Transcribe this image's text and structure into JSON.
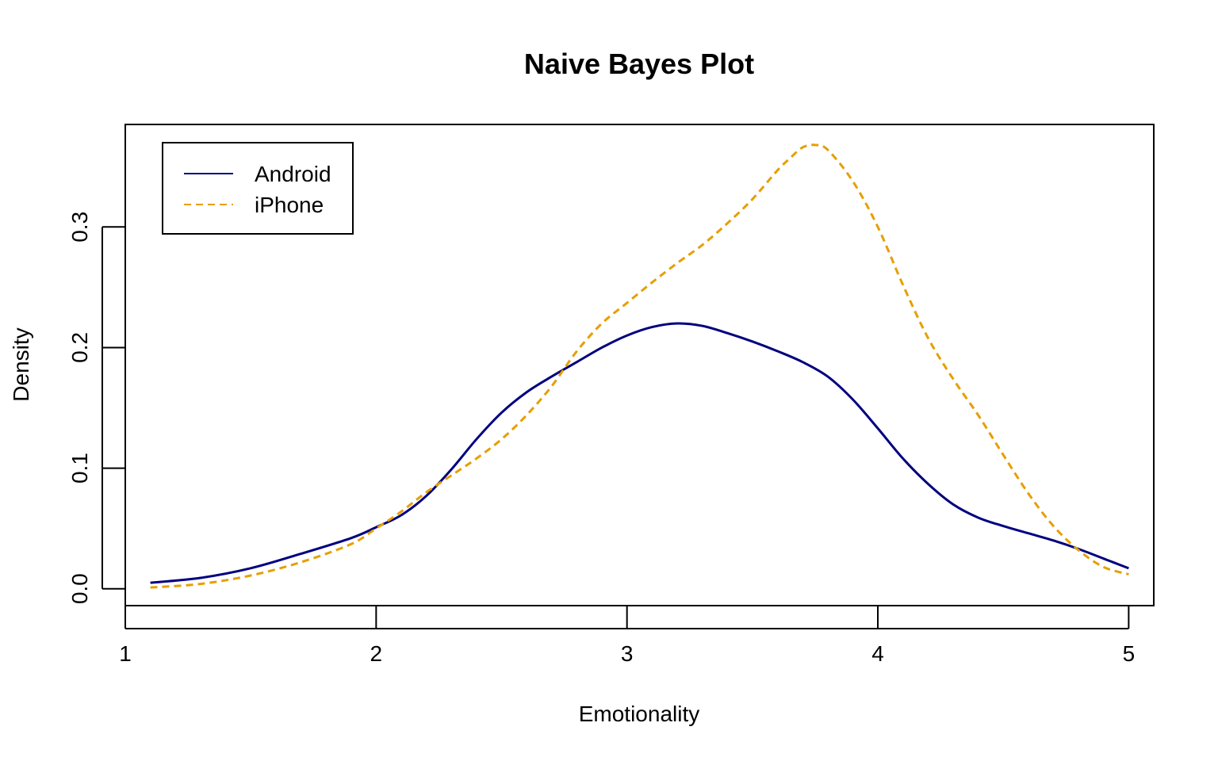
{
  "chart_data": {
    "type": "line",
    "title": "Naive Bayes Plot",
    "xlabel": "Emotionality",
    "ylabel": "Density",
    "xlim": [
      1.0,
      5.1
    ],
    "ylim": [
      -0.014,
      0.385
    ],
    "xticks": [
      1,
      2,
      3,
      4,
      5
    ],
    "yticks": [
      0.0,
      0.1,
      0.2,
      0.3
    ],
    "xtick_labels": [
      "1",
      "2",
      "3",
      "4",
      "5"
    ],
    "ytick_labels": [
      "0.0",
      "0.1",
      "0.2",
      "0.3"
    ],
    "grid": false,
    "legend": {
      "position": "top-left",
      "entries": [
        "Android",
        "iPhone"
      ]
    },
    "series": [
      {
        "name": "Android",
        "color": "#00007F",
        "dash": "solid",
        "x": [
          1.1,
          1.3,
          1.5,
          1.7,
          1.9,
          2.0,
          2.1,
          2.2,
          2.3,
          2.4,
          2.5,
          2.6,
          2.7,
          2.8,
          2.9,
          3.0,
          3.1,
          3.2,
          3.3,
          3.4,
          3.5,
          3.6,
          3.7,
          3.8,
          3.9,
          4.0,
          4.1,
          4.2,
          4.3,
          4.4,
          4.5,
          4.6,
          4.7,
          4.8,
          4.9,
          5.0
        ],
        "y": [
          0.005,
          0.009,
          0.017,
          0.029,
          0.042,
          0.051,
          0.061,
          0.077,
          0.099,
          0.124,
          0.146,
          0.163,
          0.176,
          0.188,
          0.2,
          0.21,
          0.217,
          0.22,
          0.218,
          0.212,
          0.205,
          0.197,
          0.188,
          0.176,
          0.157,
          0.133,
          0.108,
          0.087,
          0.07,
          0.059,
          0.052,
          0.046,
          0.04,
          0.033,
          0.025,
          0.017
        ]
      },
      {
        "name": "iPhone",
        "color": "#E69F00",
        "dash": "dashed",
        "x": [
          1.1,
          1.3,
          1.5,
          1.7,
          1.9,
          2.0,
          2.1,
          2.2,
          2.3,
          2.4,
          2.5,
          2.6,
          2.7,
          2.8,
          2.9,
          3.0,
          3.1,
          3.2,
          3.3,
          3.4,
          3.5,
          3.6,
          3.65,
          3.7,
          3.75,
          3.8,
          3.9,
          4.0,
          4.1,
          4.2,
          4.3,
          4.4,
          4.5,
          4.6,
          4.7,
          4.8,
          4.9,
          5.0
        ],
        "y": [
          0.001,
          0.004,
          0.011,
          0.022,
          0.037,
          0.05,
          0.064,
          0.08,
          0.094,
          0.108,
          0.124,
          0.144,
          0.168,
          0.197,
          0.22,
          0.237,
          0.254,
          0.27,
          0.285,
          0.303,
          0.323,
          0.347,
          0.357,
          0.366,
          0.368,
          0.364,
          0.338,
          0.3,
          0.252,
          0.208,
          0.174,
          0.144,
          0.111,
          0.079,
          0.052,
          0.032,
          0.018,
          0.012
        ]
      }
    ]
  }
}
